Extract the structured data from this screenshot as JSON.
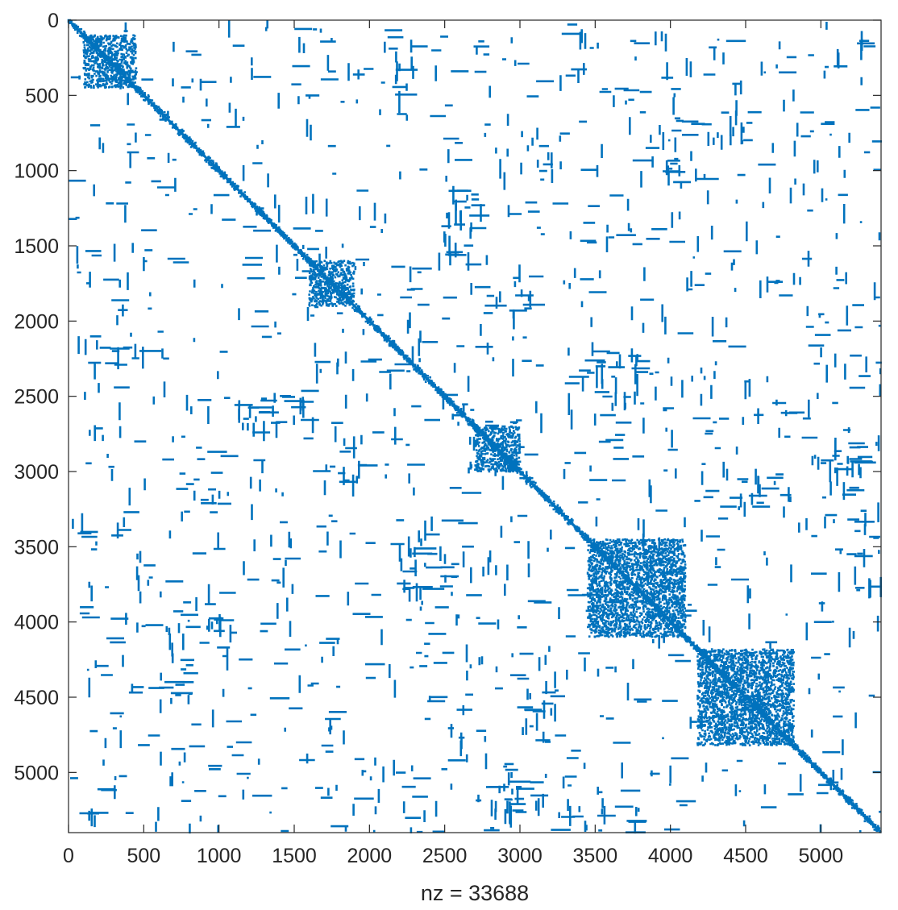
{
  "chart_data": {
    "type": "scatter",
    "subtype": "sparsity-pattern",
    "title": "",
    "xlabel": "nz = 33688",
    "ylabel": "",
    "matrix_size": 5400,
    "nz": 33688,
    "xlim": [
      0,
      5400
    ],
    "ylim": [
      5400,
      0
    ],
    "y_axis_direction": "reversed",
    "x_ticks": [
      "0",
      "500",
      "1000",
      "1500",
      "2000",
      "2500",
      "3000",
      "3500",
      "4000",
      "4500",
      "5000"
    ],
    "y_ticks": [
      "0",
      "500",
      "1000",
      "1500",
      "2000",
      "2500",
      "3000",
      "3500",
      "4000",
      "4500",
      "5000"
    ],
    "grid": false,
    "marker_color": "#0072BD",
    "diagonal": "dense",
    "dense_blocks": [
      {
        "rows": [
          100,
          450
        ],
        "cols": [
          100,
          450
        ]
      },
      {
        "rows": [
          1600,
          1900
        ],
        "cols": [
          1600,
          1900
        ]
      },
      {
        "rows": [
          2700,
          3000
        ],
        "cols": [
          2700,
          3000
        ]
      },
      {
        "rows": [
          3450,
          4100
        ],
        "cols": [
          3450,
          4100
        ]
      },
      {
        "rows": [
          4180,
          4820
        ],
        "cols": [
          4180,
          4820
        ]
      }
    ],
    "off_diagonal_clusters": [
      {
        "rows": [
          1100,
          1600
        ],
        "cols": [
          2470,
          2700
        ]
      },
      {
        "rows": [
          1700,
          1950
        ],
        "cols": [
          2700,
          3200
        ]
      },
      {
        "rows": [
          2500,
          2700
        ],
        "cols": [
          1100,
          1600
        ]
      },
      {
        "rows": [
          2100,
          2300
        ],
        "cols": [
          100,
          500
        ]
      },
      {
        "rows": [
          3500,
          4100
        ],
        "cols": [
          2200,
          2600
        ]
      },
      {
        "rows": [
          4300,
          4800
        ],
        "cols": [
          3000,
          3300
        ]
      },
      {
        "rows": [
          5000,
          5300
        ],
        "cols": [
          2700,
          3000
        ]
      },
      {
        "rows": [
          2200,
          2500
        ],
        "cols": [
          3300,
          3800
        ]
      },
      {
        "rows": [
          2800,
          3000
        ],
        "cols": [
          4900,
          5300
        ]
      },
      {
        "rows": [
          600,
          800
        ],
        "cols": [
          4000,
          4500
        ]
      },
      {
        "rows": [
          900,
          1100
        ],
        "cols": [
          3800,
          4200
        ]
      },
      {
        "rows": [
          5200,
          5400
        ],
        "cols": [
          3300,
          3800
        ]
      }
    ]
  }
}
